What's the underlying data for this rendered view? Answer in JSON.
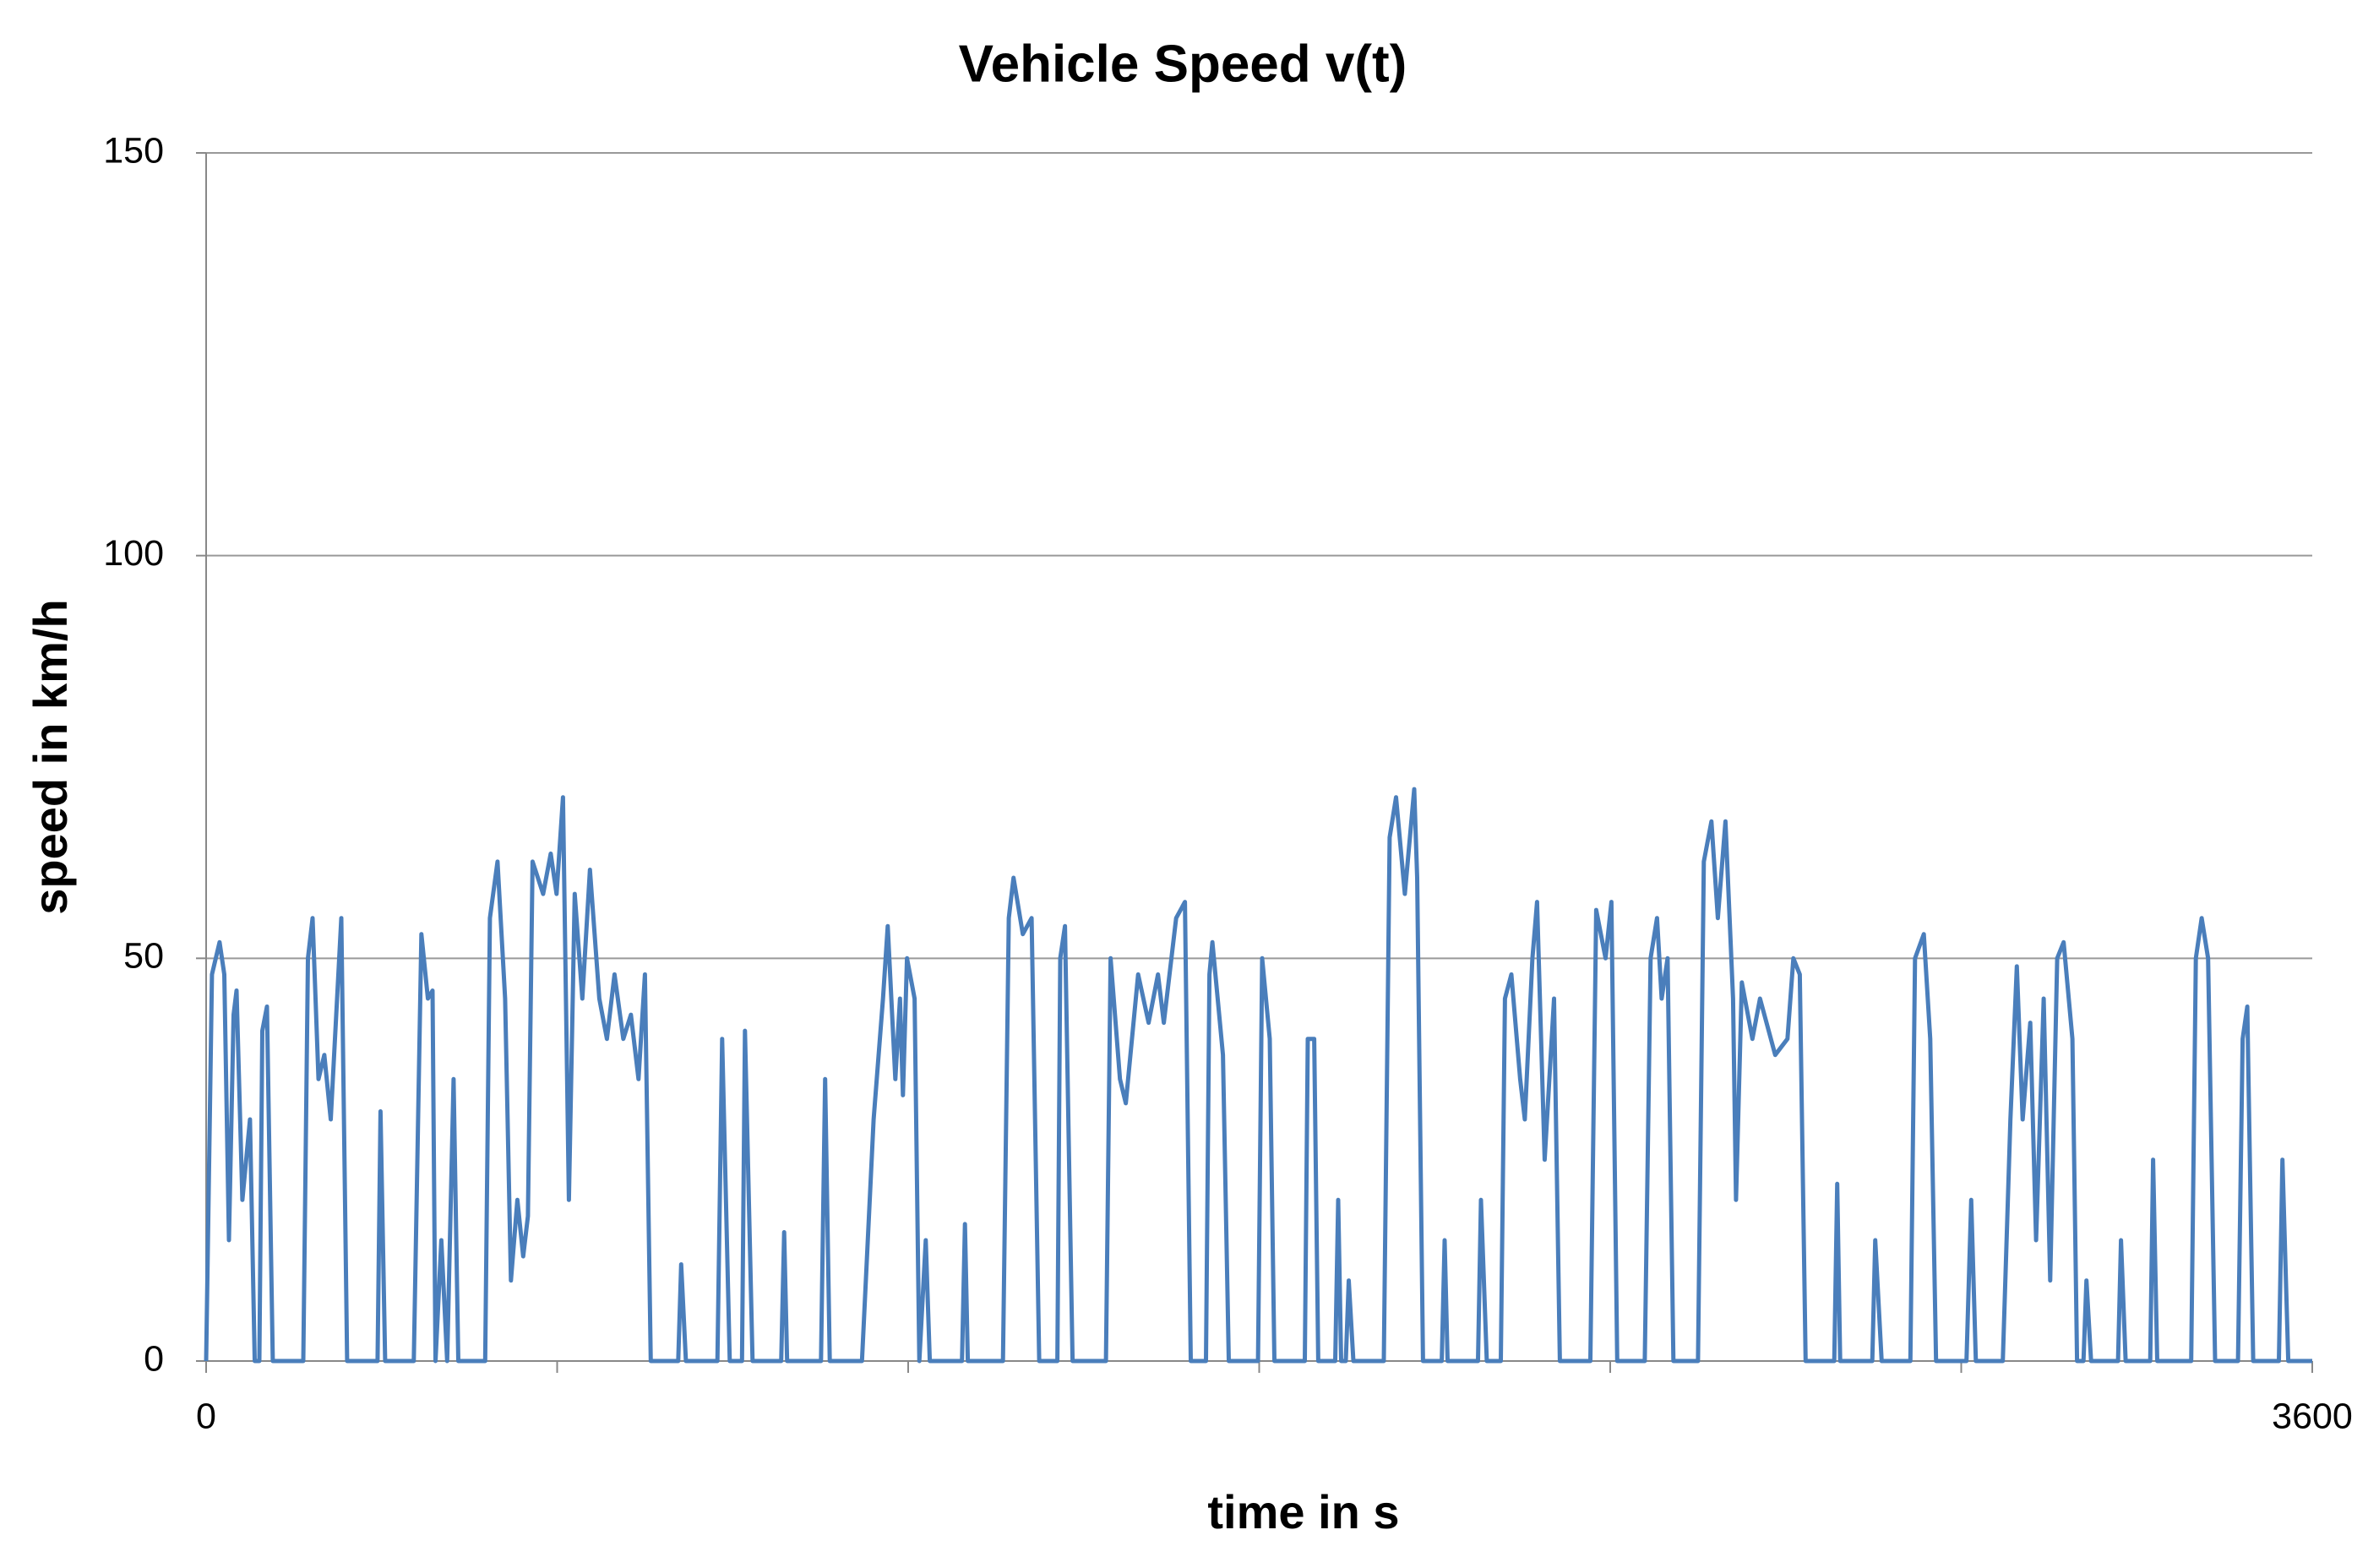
{
  "chart_data": {
    "type": "line",
    "title": "Vehicle Speed v(t)",
    "xlabel": "time in s",
    "ylabel": "speed in km/h",
    "x": [
      0,
      10,
      23,
      31,
      39,
      47,
      52,
      62,
      75,
      83,
      91,
      96,
      104,
      114,
      166,
      174,
      182,
      192,
      202,
      213,
      231,
      241,
      293,
      298,
      306,
      355,
      368,
      379,
      387,
      392,
      402,
      412,
      423,
      431,
      477,
      485,
      498,
      511,
      521,
      532,
      542,
      550,
      558,
      576,
      589,
      599,
      610,
      620,
      630,
      643,
      656,
      672,
      685,
      698,
      713,
      726,
      739,
      750,
      760,
      807,
      812,
      820,
      874,
      882,
      895,
      916,
      921,
      934,
      983,
      988,
      993,
      1051,
      1058,
      1066,
      1121,
      1141,
      1157,
      1165,
      1178,
      1186,
      1191,
      1198,
      1211,
      1219,
      1230,
      1237,
      1292,
      1297,
      1302,
      1362,
      1372,
      1380,
      1396,
      1411,
      1424,
      1455,
      1460,
      1468,
      1481,
      1538,
      1546,
      1562,
      1572,
      1593,
      1611,
      1627,
      1637,
      1658,
      1673,
      1683,
      1709,
      1715,
      1720,
      1738,
      1748,
      1798,
      1805,
      1818,
      1826,
      1878,
      1883,
      1894,
      1901,
      1930,
      1935,
      1940,
      1948,
      1953,
      1961,
      2013,
      2023,
      2034,
      2049,
      2065,
      2070,
      2080,
      2112,
      2117,
      2122,
      2174,
      2179,
      2189,
      2213,
      2220,
      2231,
      2246,
      2254,
      2267,
      2275,
      2288,
      2304,
      2314,
      2366,
      2376,
      2392,
      2402,
      2412,
      2459,
      2469,
      2480,
      2488,
      2498,
      2508,
      2550,
      2560,
      2573,
      2584,
      2597,
      2610,
      2615,
      2625,
      2643,
      2656,
      2682,
      2703,
      2713,
      2724,
      2734,
      2783,
      2788,
      2793,
      2848,
      2853,
      2864,
      2913,
      2921,
      2936,
      2947,
      2957,
      3009,
      3017,
      3025,
      3071,
      3084,
      3095,
      3105,
      3118,
      3128,
      3141,
      3152,
      3164,
      3175,
      3190,
      3198,
      3209,
      3214,
      3222,
      3268,
      3273,
      3281,
      3323,
      3328,
      3335,
      3393,
      3401,
      3411,
      3422,
      3434,
      3473,
      3481,
      3489,
      3499,
      3543,
      3549,
      3559,
      3600
    ],
    "values": [
      0,
      48,
      52,
      48,
      15,
      43,
      46,
      20,
      30,
      0,
      0,
      41,
      44,
      0,
      0,
      50,
      55,
      35,
      38,
      30,
      55,
      0,
      0,
      31,
      0,
      0,
      53,
      45,
      46,
      0,
      15,
      0,
      35,
      0,
      0,
      55,
      62,
      45,
      10,
      20,
      13,
      18,
      62,
      58,
      63,
      58,
      70,
      20,
      58,
      45,
      61,
      45,
      40,
      48,
      40,
      43,
      35,
      48,
      0,
      0,
      12,
      0,
      0,
      40,
      0,
      0,
      41,
      0,
      0,
      16,
      0,
      0,
      35,
      0,
      0,
      30,
      45,
      54,
      35,
      45,
      33,
      50,
      45,
      0,
      15,
      0,
      0,
      17,
      0,
      0,
      55,
      60,
      53,
      55,
      0,
      0,
      50,
      54,
      0,
      0,
      50,
      35,
      32,
      48,
      42,
      48,
      42,
      55,
      57,
      0,
      0,
      48,
      52,
      38,
      0,
      0,
      50,
      40,
      0,
      0,
      40,
      40,
      0,
      0,
      20,
      0,
      0,
      10,
      0,
      0,
      65,
      70,
      58,
      71,
      60,
      0,
      0,
      15,
      0,
      0,
      20,
      0,
      0,
      45,
      48,
      35,
      30,
      50,
      57,
      25,
      45,
      0,
      0,
      56,
      50,
      57,
      0,
      0,
      50,
      55,
      45,
      50,
      0,
      0,
      62,
      67,
      55,
      67,
      45,
      20,
      47,
      40,
      45,
      38,
      40,
      50,
      48,
      0,
      0,
      22,
      0,
      0,
      15,
      0,
      0,
      50,
      53,
      40,
      0,
      0,
      20,
      0,
      0,
      30,
      49,
      30,
      42,
      15,
      45,
      10,
      50,
      52,
      40,
      0,
      0,
      10,
      0,
      0,
      15,
      0,
      0,
      25,
      0,
      0,
      50,
      55,
      50,
      0,
      0,
      40,
      44,
      0,
      0,
      25,
      0,
      0
    ],
    "color": "#4a7ebb",
    "xlim": [
      0,
      3600
    ],
    "xticks": [
      0,
      3600
    ],
    "x_minor_ticks": [
      600,
      1200,
      1800,
      2400,
      3000
    ],
    "ylim": [
      0,
      150
    ],
    "yticks": [
      0,
      50,
      100,
      150
    ],
    "grid": true
  }
}
